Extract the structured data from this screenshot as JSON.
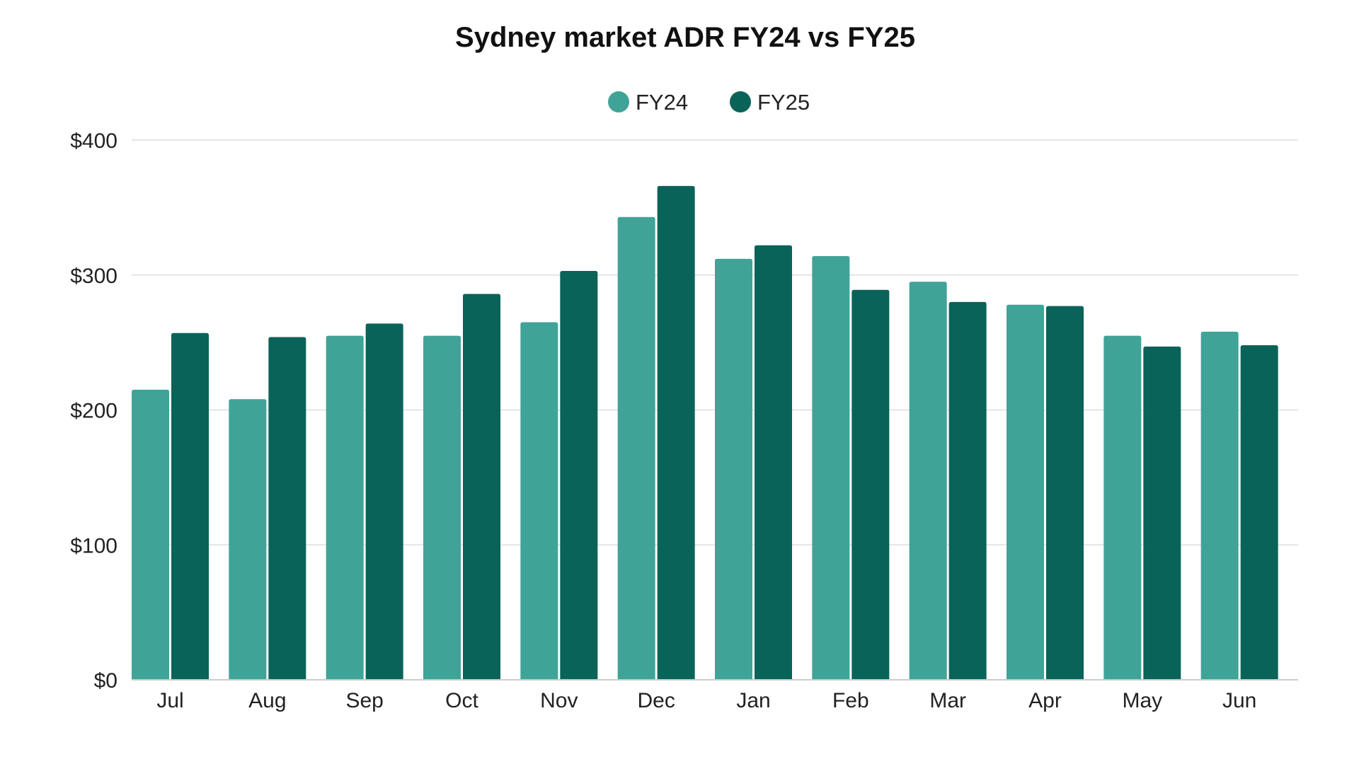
{
  "chart_data": {
    "type": "bar",
    "title": "Sydney market ADR FY24 vs FY25",
    "xlabel": "",
    "ylabel": "",
    "categories": [
      "Jul",
      "Aug",
      "Sep",
      "Oct",
      "Nov",
      "Dec",
      "Jan",
      "Feb",
      "Mar",
      "Apr",
      "May",
      "Jun"
    ],
    "series": [
      {
        "name": "FY24",
        "color": "#40a398",
        "values": [
          215,
          208,
          255,
          255,
          265,
          343,
          312,
          314,
          295,
          278,
          255,
          258
        ]
      },
      {
        "name": "FY25",
        "color": "#0a6358",
        "values": [
          257,
          254,
          264,
          286,
          303,
          366,
          322,
          289,
          280,
          277,
          247,
          248
        ]
      }
    ],
    "ylim": [
      0,
      400
    ],
    "yticks": [
      0,
      100,
      200,
      300,
      400
    ],
    "ytick_labels": [
      "$0",
      "$100",
      "$200",
      "$300",
      "$400"
    ],
    "grid": true,
    "legend": "top-center"
  }
}
